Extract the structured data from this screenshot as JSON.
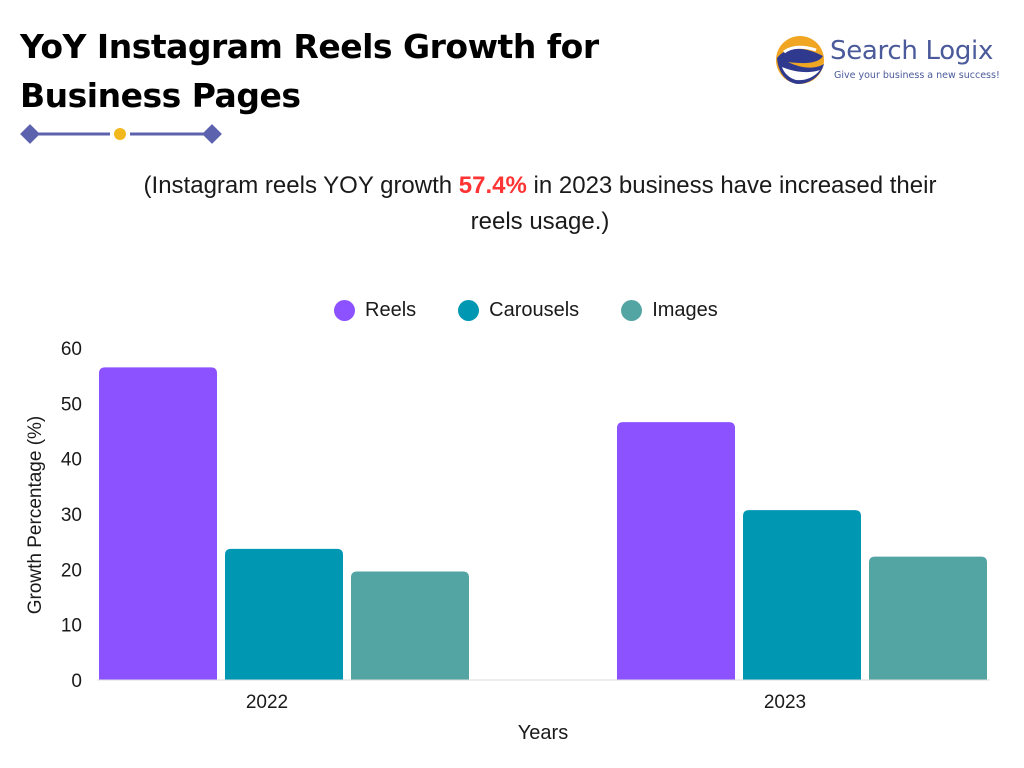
{
  "header": {
    "title_line1": "YoY Instagram Reels Growth for",
    "title_line2": "Business Pages"
  },
  "logo": {
    "name": "Search Logix",
    "tagline": "Give your business a new success!"
  },
  "subtitle": {
    "before": "(Instagram reels YOY growth ",
    "highlight": "57.4%",
    "after": " in 2023 business have increased their reels usage.)"
  },
  "colors": {
    "reels": "#8c52ff",
    "carousels": "#0097b2",
    "images": "#52a5a2",
    "highlight": "#ff3434",
    "divider": "#5c62ae",
    "divider_dot": "#f2b91e"
  },
  "chart_data": {
    "type": "bar",
    "categories": [
      "2022",
      "2023"
    ],
    "series": [
      {
        "name": "Reels",
        "values": [
          56.5,
          46.6
        ]
      },
      {
        "name": "Carousels",
        "values": [
          23.7,
          30.7
        ]
      },
      {
        "name": "Images",
        "values": [
          19.6,
          22.3
        ]
      }
    ],
    "title": "YoY Instagram Reels Growth for Business Pages",
    "xlabel": "Years",
    "ylabel": "Growth Percentage (%)",
    "ylim": [
      0,
      60
    ],
    "yticks": [
      "0",
      "10",
      "20",
      "30",
      "40",
      "50",
      "60"
    ],
    "legend_position": "top-center",
    "grid": false
  }
}
